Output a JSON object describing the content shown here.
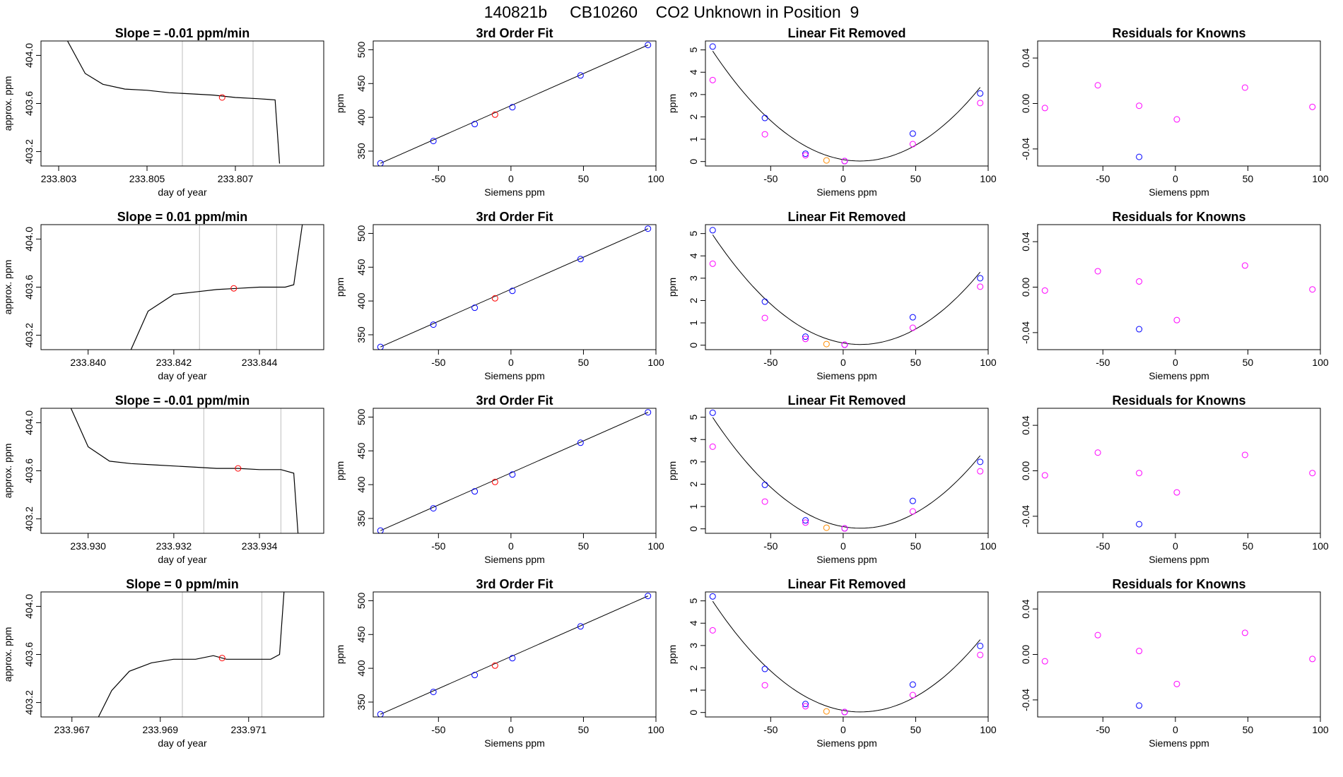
{
  "title": "140821b     CB10260    CO2 Unknown in Position  9",
  "colors": {
    "unknown": "#ff0000",
    "known": "#0000ff",
    "quad_point": "#ff00ff",
    "unknown_quad": "#ff8c00",
    "trace": "#000000",
    "vline": "#bebebe"
  },
  "chart_data": [
    {
      "type": "line",
      "title": "Slope =  -0.01  ppm/min",
      "xlabel": "day of year",
      "ylabel": "approx. ppm",
      "xticks": [
        "233.803",
        "233.805",
        "233.807"
      ],
      "xlim": [
        233.8026,
        233.809
      ],
      "ylim": [
        403.08,
        404.12
      ],
      "yticks": [
        "403.2",
        "403.6",
        "404.0"
      ],
      "vlines": [
        233.8058,
        233.8074
      ],
      "unknown_point": [
        233.8067,
        403.65
      ],
      "trace": [
        [
          233.8032,
          404.12
        ],
        [
          233.8036,
          403.85
        ],
        [
          233.804,
          403.76
        ],
        [
          233.8045,
          403.72
        ],
        [
          233.805,
          403.71
        ],
        [
          233.8055,
          403.69
        ],
        [
          233.806,
          403.68
        ],
        [
          233.8065,
          403.67
        ],
        [
          233.807,
          403.65
        ],
        [
          233.8075,
          403.64
        ],
        [
          233.8079,
          403.63
        ],
        [
          233.808,
          403.1
        ]
      ]
    },
    {
      "type": "scatter",
      "title": "3rd Order Fit",
      "xlabel": "Siemens ppm",
      "ylabel": "ppm",
      "xlim": [
        -95,
        100
      ],
      "ylim": [
        328,
        513
      ],
      "xticks": [
        "-50",
        "0",
        "50",
        "100"
      ],
      "yticks": [
        "350",
        "400",
        "450",
        "500"
      ],
      "known": [
        [
          -90,
          332
        ],
        [
          -53.5,
          365
        ],
        [
          -25,
          390
        ],
        [
          1,
          415
        ],
        [
          48,
          462
        ],
        [
          94.5,
          507
        ]
      ],
      "unknown": [
        [
          -11,
          404
        ]
      ]
    },
    {
      "type": "scatter",
      "title": "Linear Fit Removed",
      "xlabel": "Siemens ppm",
      "ylabel": "ppm",
      "xlim": [
        -95,
        100
      ],
      "ylim": [
        -0.2,
        5.4
      ],
      "xticks": [
        "-50",
        "0",
        "50",
        "100"
      ],
      "yticks": [
        "0",
        "1",
        "2",
        "3",
        "4",
        "5"
      ],
      "known": [
        [
          -90,
          5.15
        ],
        [
          -54,
          1.95
        ],
        [
          -26,
          0.35
        ],
        [
          1,
          0.02
        ],
        [
          48,
          1.25
        ],
        [
          94.5,
          3.05
        ]
      ],
      "quad": [
        [
          -90,
          3.65
        ],
        [
          -54,
          1.22
        ],
        [
          -26,
          0.28
        ],
        [
          1,
          0.02
        ],
        [
          48,
          0.78
        ],
        [
          94.5,
          2.62
        ]
      ],
      "unknown": [
        [
          -11.5,
          0.05
        ]
      ]
    },
    {
      "type": "scatter",
      "title": "Residuals for Knowns",
      "xlabel": "Siemens ppm",
      "ylabel": "",
      "xlim": [
        -95,
        100
      ],
      "ylim": [
        -0.055,
        0.055
      ],
      "xticks": [
        "-50",
        "0",
        "50",
        "100"
      ],
      "yticks": [
        "-0.04",
        "0.00",
        "0.04"
      ],
      "quad": [
        [
          -90,
          -0.004
        ],
        [
          -53.5,
          0.016
        ],
        [
          -25,
          -0.002
        ],
        [
          1,
          -0.014
        ],
        [
          48,
          0.014
        ],
        [
          94.5,
          -0.003
        ]
      ],
      "known": [
        [
          -25,
          -0.047
        ]
      ]
    },
    {
      "type": "line",
      "title": "Slope =  0.01  ppm/min",
      "xlabel": "day of year",
      "ylabel": "approx. ppm",
      "xticks": [
        "233.840",
        "233.842",
        "233.844"
      ],
      "xlim": [
        233.8389,
        233.8455
      ],
      "ylim": [
        403.08,
        404.12
      ],
      "yticks": [
        "403.2",
        "403.6",
        "404.0"
      ],
      "vlines": [
        233.8426,
        233.8444
      ],
      "unknown_point": [
        233.8434,
        403.59
      ],
      "trace": [
        [
          233.841,
          403.08
        ],
        [
          233.8414,
          403.4
        ],
        [
          233.842,
          403.54
        ],
        [
          233.8425,
          403.56
        ],
        [
          233.843,
          403.58
        ],
        [
          233.8435,
          403.59
        ],
        [
          233.844,
          403.6
        ],
        [
          233.8446,
          403.6
        ],
        [
          233.8448,
          403.62
        ],
        [
          233.845,
          404.12
        ]
      ]
    },
    {
      "type": "scatter",
      "title": "3rd Order Fit",
      "xlabel": "Siemens ppm",
      "ylabel": "ppm",
      "xlim": [
        -95,
        100
      ],
      "ylim": [
        328,
        513
      ],
      "xticks": [
        "-50",
        "0",
        "50",
        "100"
      ],
      "yticks": [
        "350",
        "400",
        "450",
        "500"
      ],
      "known": [
        [
          -90,
          332
        ],
        [
          -53.5,
          365
        ],
        [
          -25,
          390
        ],
        [
          1,
          415
        ],
        [
          48,
          462
        ],
        [
          94.5,
          507
        ]
      ],
      "unknown": [
        [
          -11,
          404
        ]
      ]
    },
    {
      "type": "scatter",
      "title": "Linear Fit Removed",
      "xlabel": "Siemens ppm",
      "ylabel": "ppm",
      "xlim": [
        -95,
        100
      ],
      "ylim": [
        -0.2,
        5.4
      ],
      "xticks": [
        "-50",
        "0",
        "50",
        "100"
      ],
      "yticks": [
        "0",
        "1",
        "2",
        "3",
        "4",
        "5"
      ],
      "known": [
        [
          -90,
          5.15
        ],
        [
          -54,
          1.95
        ],
        [
          -26,
          0.38
        ],
        [
          1,
          0.02
        ],
        [
          48,
          1.25
        ],
        [
          94.5,
          3.0
        ]
      ],
      "quad": [
        [
          -90,
          3.65
        ],
        [
          -54,
          1.22
        ],
        [
          -26,
          0.28
        ],
        [
          1,
          0.02
        ],
        [
          48,
          0.78
        ],
        [
          94.5,
          2.62
        ]
      ],
      "unknown": [
        [
          -11.5,
          0.05
        ]
      ]
    },
    {
      "type": "scatter",
      "title": "Residuals for Knowns",
      "xlabel": "Siemens ppm",
      "ylabel": "",
      "xlim": [
        -95,
        100
      ],
      "ylim": [
        -0.055,
        0.055
      ],
      "xticks": [
        "-50",
        "0",
        "50",
        "100"
      ],
      "yticks": [
        "-0.04",
        "0.00",
        "0.04"
      ],
      "quad": [
        [
          -90,
          -0.003
        ],
        [
          -53.5,
          0.014
        ],
        [
          -25,
          0.005
        ],
        [
          1,
          -0.029
        ],
        [
          48,
          0.019
        ],
        [
          94.5,
          -0.002
        ]
      ],
      "known": [
        [
          -25,
          -0.037
        ]
      ]
    },
    {
      "type": "line",
      "title": "Slope =  -0.01  ppm/min",
      "xlabel": "day of year",
      "ylabel": "approx. ppm",
      "xticks": [
        "233.930",
        "233.932",
        "233.934"
      ],
      "xlim": [
        233.9289,
        233.9355
      ],
      "ylim": [
        403.08,
        404.12
      ],
      "yticks": [
        "403.2",
        "403.6",
        "404.0"
      ],
      "vlines": [
        233.9327,
        233.9345
      ],
      "unknown_point": [
        233.9335,
        403.62
      ],
      "trace": [
        [
          233.9296,
          404.12
        ],
        [
          233.93,
          403.8
        ],
        [
          233.9305,
          403.68
        ],
        [
          233.931,
          403.66
        ],
        [
          233.9315,
          403.65
        ],
        [
          233.932,
          403.64
        ],
        [
          233.9325,
          403.63
        ],
        [
          233.933,
          403.62
        ],
        [
          233.9335,
          403.62
        ],
        [
          233.934,
          403.61
        ],
        [
          233.9345,
          403.61
        ],
        [
          233.9348,
          403.58
        ],
        [
          233.9349,
          403.08
        ]
      ]
    },
    {
      "type": "scatter",
      "title": "3rd Order Fit",
      "xlabel": "Siemens ppm",
      "ylabel": "ppm",
      "xlim": [
        -95,
        100
      ],
      "ylim": [
        328,
        513
      ],
      "xticks": [
        "-50",
        "0",
        "50",
        "100"
      ],
      "yticks": [
        "350",
        "400",
        "450",
        "500"
      ],
      "known": [
        [
          -90,
          332
        ],
        [
          -53.5,
          365
        ],
        [
          -25,
          390
        ],
        [
          1,
          415
        ],
        [
          48,
          462
        ],
        [
          94.5,
          507
        ]
      ],
      "unknown": [
        [
          -11,
          404
        ]
      ]
    },
    {
      "type": "scatter",
      "title": "Linear Fit Removed",
      "xlabel": "Siemens ppm",
      "ylabel": "ppm",
      "xlim": [
        -95,
        100
      ],
      "ylim": [
        -0.2,
        5.4
      ],
      "xticks": [
        "-50",
        "0",
        "50",
        "100"
      ],
      "yticks": [
        "0",
        "1",
        "2",
        "3",
        "4",
        "5"
      ],
      "known": [
        [
          -90,
          5.2
        ],
        [
          -54,
          1.97
        ],
        [
          -26,
          0.38
        ],
        [
          1,
          0.02
        ],
        [
          48,
          1.25
        ],
        [
          94.5,
          3.0
        ]
      ],
      "quad": [
        [
          -90,
          3.68
        ],
        [
          -54,
          1.22
        ],
        [
          -26,
          0.28
        ],
        [
          1,
          0.02
        ],
        [
          48,
          0.78
        ],
        [
          94.5,
          2.58
        ]
      ],
      "unknown": [
        [
          -11.5,
          0.05
        ]
      ]
    },
    {
      "type": "scatter",
      "title": "Residuals for Knowns",
      "xlabel": "Siemens ppm",
      "ylabel": "",
      "xlim": [
        -95,
        100
      ],
      "ylim": [
        -0.055,
        0.055
      ],
      "xticks": [
        "-50",
        "0",
        "50",
        "100"
      ],
      "yticks": [
        "-0.04",
        "0.00",
        "0.04"
      ],
      "quad": [
        [
          -90,
          -0.004
        ],
        [
          -53.5,
          0.016
        ],
        [
          -25,
          -0.002
        ],
        [
          1,
          -0.019
        ],
        [
          48,
          0.014
        ],
        [
          94.5,
          -0.002
        ]
      ],
      "known": [
        [
          -25,
          -0.047
        ]
      ]
    },
    {
      "type": "line",
      "title": "Slope =  0  ppm/min",
      "xlabel": "day of year",
      "ylabel": "approx. ppm",
      "xticks": [
        "233.967",
        "233.969",
        "233.971"
      ],
      "xlim": [
        233.9663,
        233.9727
      ],
      "ylim": [
        403.08,
        404.12
      ],
      "yticks": [
        "403.2",
        "403.6",
        "404.0"
      ],
      "vlines": [
        233.9695,
        233.9713
      ],
      "unknown_point": [
        233.9704,
        403.57
      ],
      "trace": [
        [
          233.9676,
          403.08
        ],
        [
          233.9679,
          403.3
        ],
        [
          233.9683,
          403.46
        ],
        [
          233.9688,
          403.53
        ],
        [
          233.9693,
          403.56
        ],
        [
          233.9698,
          403.56
        ],
        [
          233.9702,
          403.59
        ],
        [
          233.9705,
          403.56
        ],
        [
          233.971,
          403.56
        ],
        [
          233.9715,
          403.56
        ],
        [
          233.9717,
          403.6
        ],
        [
          233.9718,
          404.12
        ]
      ]
    },
    {
      "type": "scatter",
      "title": "3rd Order Fit",
      "xlabel": "Siemens ppm",
      "ylabel": "ppm",
      "xlim": [
        -95,
        100
      ],
      "ylim": [
        328,
        513
      ],
      "xticks": [
        "-50",
        "0",
        "50",
        "100"
      ],
      "yticks": [
        "350",
        "400",
        "450",
        "500"
      ],
      "known": [
        [
          -90,
          332
        ],
        [
          -53.5,
          365
        ],
        [
          -25,
          390
        ],
        [
          1,
          415
        ],
        [
          48,
          462
        ],
        [
          94.5,
          507
        ]
      ],
      "unknown": [
        [
          -11,
          404
        ]
      ]
    },
    {
      "type": "scatter",
      "title": "Linear Fit Removed",
      "xlabel": "Siemens ppm",
      "ylabel": "ppm",
      "xlim": [
        -95,
        100
      ],
      "ylim": [
        -0.2,
        5.4
      ],
      "xticks": [
        "-50",
        "0",
        "50",
        "100"
      ],
      "yticks": [
        "0",
        "1",
        "2",
        "3",
        "4",
        "5"
      ],
      "known": [
        [
          -90,
          5.2
        ],
        [
          -54,
          1.95
        ],
        [
          -26,
          0.38
        ],
        [
          1,
          0.02
        ],
        [
          48,
          1.25
        ],
        [
          94.5,
          2.98
        ]
      ],
      "quad": [
        [
          -90,
          3.68
        ],
        [
          -54,
          1.22
        ],
        [
          -26,
          0.28
        ],
        [
          1,
          0.02
        ],
        [
          48,
          0.78
        ],
        [
          94.5,
          2.58
        ]
      ],
      "unknown": [
        [
          -11.5,
          0.05
        ]
      ]
    },
    {
      "type": "scatter",
      "title": "Residuals for Knowns",
      "xlabel": "Siemens ppm",
      "ylabel": "",
      "xlim": [
        -95,
        100
      ],
      "ylim": [
        -0.055,
        0.055
      ],
      "xticks": [
        "-50",
        "0",
        "50",
        "100"
      ],
      "yticks": [
        "-0.04",
        "0.00",
        "0.04"
      ],
      "quad": [
        [
          -90,
          -0.006
        ],
        [
          -53.5,
          0.017
        ],
        [
          -25,
          0.003
        ],
        [
          1,
          -0.026
        ],
        [
          48,
          0.019
        ],
        [
          94.5,
          -0.004
        ]
      ],
      "known": [
        [
          -25,
          -0.045
        ]
      ]
    }
  ]
}
